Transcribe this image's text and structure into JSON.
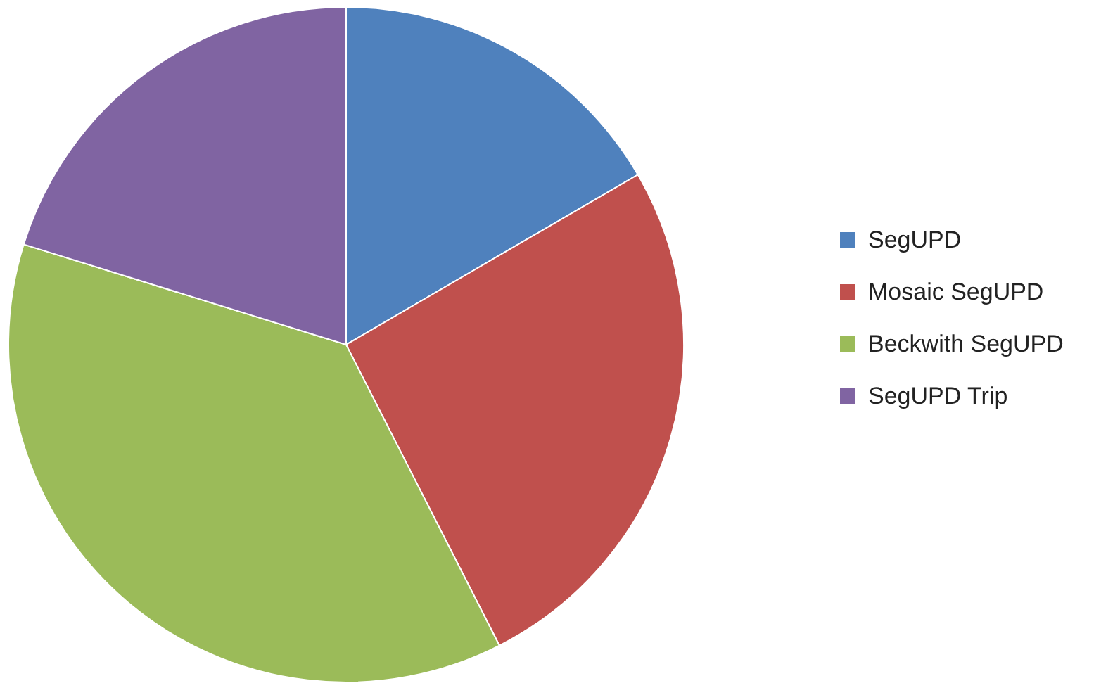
{
  "chart_data": {
    "type": "pie",
    "categories": [
      "SegUPD",
      "Mosaic SegUPD",
      "Beckwith SegUPD",
      "SegUPD Trip"
    ],
    "values": [
      16.6,
      25.9,
      37.3,
      20.2
    ],
    "colors": [
      "#4f81bd",
      "#c0504d",
      "#9bbb59",
      "#8064a2"
    ],
    "legend": "right"
  }
}
